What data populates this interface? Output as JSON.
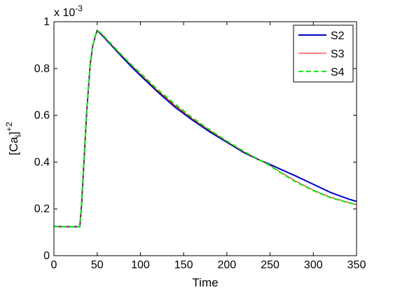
{
  "chart_data": {
    "type": "line",
    "title": "",
    "xlabel": "Time",
    "ylabel": "[Ca",
    "ylabel_sub": "i",
    "ylabel_bracket": "]",
    "ylabel_sup": "+2",
    "y_multiplier_base": "x 10",
    "y_multiplier_exp": "-3",
    "xlim": [
      0,
      350
    ],
    "ylim": [
      0,
      1
    ],
    "x_ticks": [
      0,
      50,
      100,
      150,
      200,
      250,
      300,
      350
    ],
    "x_tick_labels": [
      "0",
      "50",
      "100",
      "150",
      "200",
      "250",
      "300",
      "350"
    ],
    "y_ticks": [
      0,
      0.2,
      0.4,
      0.6,
      0.8,
      1
    ],
    "y_tick_labels": [
      "0",
      "0.2",
      "0.4",
      "0.6",
      "0.8",
      "1"
    ],
    "grid": false,
    "legend_position": "top-right",
    "series": [
      {
        "name": "S2",
        "color": "#0000cc",
        "style": "solid",
        "x": [
          0,
          10,
          20,
          30,
          32,
          35,
          38,
          40,
          42,
          45,
          48,
          50,
          52,
          55,
          60,
          70,
          80,
          90,
          100,
          120,
          140,
          160,
          180,
          200,
          220,
          240,
          250,
          260,
          280,
          300,
          320,
          340,
          350
        ],
        "y": [
          0.125,
          0.124,
          0.124,
          0.124,
          0.22,
          0.42,
          0.62,
          0.72,
          0.82,
          0.9,
          0.94,
          0.962,
          0.955,
          0.945,
          0.925,
          0.885,
          0.845,
          0.806,
          0.77,
          0.7,
          0.635,
          0.58,
          0.53,
          0.485,
          0.44,
          0.405,
          0.39,
          0.373,
          0.34,
          0.305,
          0.27,
          0.243,
          0.232
        ]
      },
      {
        "name": "S3",
        "color": "#ff0000",
        "style": "solid",
        "x": [
          0,
          10,
          20,
          30,
          32,
          35,
          38,
          40,
          42,
          45,
          48,
          50,
          52,
          55,
          60,
          70,
          80,
          90,
          100,
          120,
          140,
          160,
          180,
          200,
          220,
          240,
          250,
          260,
          280,
          300,
          320,
          340,
          350
        ],
        "y": [
          0.125,
          0.124,
          0.124,
          0.124,
          0.22,
          0.42,
          0.62,
          0.72,
          0.82,
          0.9,
          0.94,
          0.962,
          0.957,
          0.948,
          0.928,
          0.888,
          0.85,
          0.812,
          0.776,
          0.705,
          0.642,
          0.585,
          0.535,
          0.488,
          0.443,
          0.405,
          0.386,
          0.362,
          0.318,
          0.28,
          0.25,
          0.228,
          0.218
        ]
      },
      {
        "name": "S4",
        "color": "#00ee00",
        "style": "dashed",
        "x": [
          0,
          10,
          20,
          30,
          32,
          35,
          38,
          40,
          42,
          45,
          48,
          50,
          52,
          55,
          60,
          70,
          80,
          90,
          100,
          120,
          140,
          160,
          180,
          200,
          220,
          240,
          250,
          260,
          280,
          300,
          320,
          340,
          350
        ],
        "y": [
          0.125,
          0.124,
          0.124,
          0.124,
          0.22,
          0.42,
          0.62,
          0.72,
          0.82,
          0.9,
          0.94,
          0.962,
          0.958,
          0.95,
          0.93,
          0.89,
          0.852,
          0.815,
          0.78,
          0.71,
          0.648,
          0.59,
          0.538,
          0.49,
          0.445,
          0.405,
          0.385,
          0.36,
          0.315,
          0.278,
          0.248,
          0.227,
          0.218
        ]
      }
    ]
  }
}
